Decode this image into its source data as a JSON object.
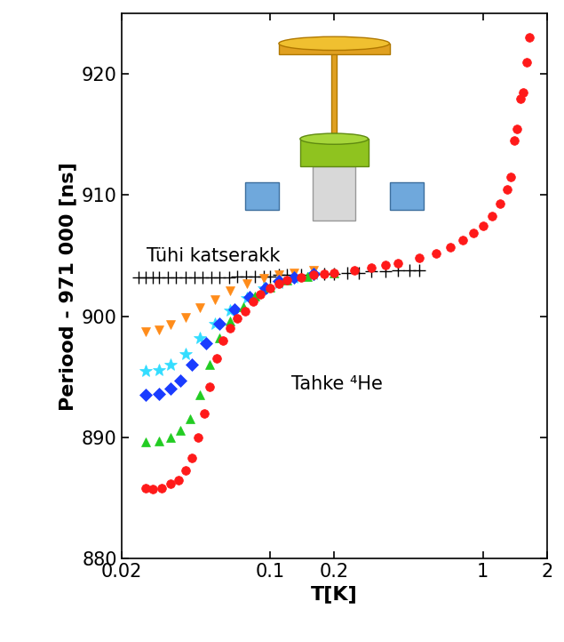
{
  "chart_data": {
    "type": "scatter",
    "x_label": "T[K]",
    "y_label": "Periood - 971 000 [ns]",
    "annotations": [
      "Tühi katserakk",
      "Tahke ⁴He"
    ],
    "log": "x",
    "grid": false,
    "xlim": [
      0.02,
      2
    ],
    "xticks": [
      0.02,
      0.1,
      0.2,
      1,
      2
    ],
    "ylim": [
      880,
      925
    ],
    "yticks": [
      880,
      890,
      900,
      910,
      920
    ],
    "series": [
      {
        "color": "#000000",
        "marker": "+",
        "x": [
          0.024,
          0.026,
          0.028,
          0.03,
          0.033,
          0.036,
          0.04,
          0.044,
          0.048,
          0.053,
          0.058,
          0.064,
          0.07,
          0.077,
          0.085,
          0.093,
          0.1,
          0.11,
          0.12,
          0.14,
          0.16,
          0.18,
          0.2,
          0.23,
          0.26,
          0.3,
          0.35,
          0.4,
          0.45,
          0.5
        ],
        "values": [
          903.2,
          903.2,
          903.2,
          903.2,
          903.2,
          903.2,
          903.2,
          903.2,
          903.2,
          903.2,
          903.2,
          903.2,
          903.3,
          903.3,
          903.3,
          903.3,
          903.3,
          903.4,
          903.4,
          903.4,
          903.5,
          903.5,
          903.5,
          903.6,
          903.6,
          903.7,
          903.7,
          903.8,
          903.8,
          903.8
        ]
      },
      {
        "color": "#ff8c1a",
        "marker": "v",
        "x": [
          0.026,
          0.03,
          0.034,
          0.04,
          0.047,
          0.055,
          0.065,
          0.078,
          0.093,
          0.11,
          0.13,
          0.16
        ],
        "values": [
          898.7,
          898.9,
          899.3,
          899.9,
          900.7,
          901.4,
          902.1,
          902.7,
          903.1,
          903.4,
          903.6,
          903.8
        ]
      },
      {
        "color": "#33ddff",
        "marker": "*",
        "x": [
          0.026,
          0.03,
          0.034,
          0.04,
          0.047,
          0.055,
          0.065,
          0.078,
          0.093,
          0.11,
          0.13,
          0.16
        ],
        "values": [
          895.5,
          895.6,
          896.0,
          896.9,
          898.2,
          899.4,
          900.5,
          901.5,
          902.3,
          902.8,
          903.2,
          903.5
        ]
      },
      {
        "color": "#1a3cff",
        "marker": "D",
        "x": [
          0.026,
          0.03,
          0.034,
          0.038,
          0.043,
          0.05,
          0.058,
          0.068,
          0.08,
          0.095,
          0.11,
          0.13,
          0.16
        ],
        "values": [
          893.5,
          893.6,
          894.0,
          894.7,
          896.0,
          897.8,
          899.4,
          900.6,
          901.6,
          902.3,
          902.9,
          903.2,
          903.5
        ]
      },
      {
        "color": "#22cc22",
        "marker": "^",
        "x": [
          0.026,
          0.03,
          0.034,
          0.038,
          0.042,
          0.047,
          0.052,
          0.058,
          0.065,
          0.075,
          0.085,
          0.1,
          0.12,
          0.15,
          0.2
        ],
        "values": [
          889.6,
          889.7,
          890.0,
          890.6,
          891.5,
          893.5,
          896.0,
          898.2,
          899.6,
          900.8,
          901.7,
          902.4,
          903.0,
          903.3,
          903.6
        ]
      },
      {
        "color": "#ff1a1a",
        "marker": "o",
        "x": [
          0.026,
          0.028,
          0.031,
          0.034,
          0.037,
          0.04,
          0.043,
          0.046,
          0.049,
          0.052,
          0.056,
          0.06,
          0.065,
          0.07,
          0.076,
          0.083,
          0.09,
          0.1,
          0.11,
          0.12,
          0.14,
          0.16,
          0.18,
          0.2,
          0.25,
          0.3,
          0.35,
          0.4,
          0.5,
          0.6,
          0.7,
          0.8,
          0.9,
          1.0,
          1.1,
          1.2,
          1.3,
          1.35,
          1.4,
          1.45,
          1.5,
          1.55,
          1.6,
          1.65
        ],
        "values": [
          885.8,
          885.7,
          885.8,
          886.2,
          886.5,
          887.3,
          888.3,
          890.0,
          892.0,
          894.2,
          896.5,
          898.0,
          899.0,
          899.8,
          900.4,
          901.2,
          901.8,
          902.3,
          902.7,
          903.0,
          903.2,
          903.4,
          903.5,
          903.6,
          903.8,
          904.0,
          904.2,
          904.4,
          904.8,
          905.2,
          905.7,
          906.3,
          906.9,
          907.5,
          908.3,
          909.3,
          910.5,
          911.5,
          914.5,
          915.5,
          918.0,
          918.5,
          921.0,
          923.0
        ]
      }
    ]
  }
}
